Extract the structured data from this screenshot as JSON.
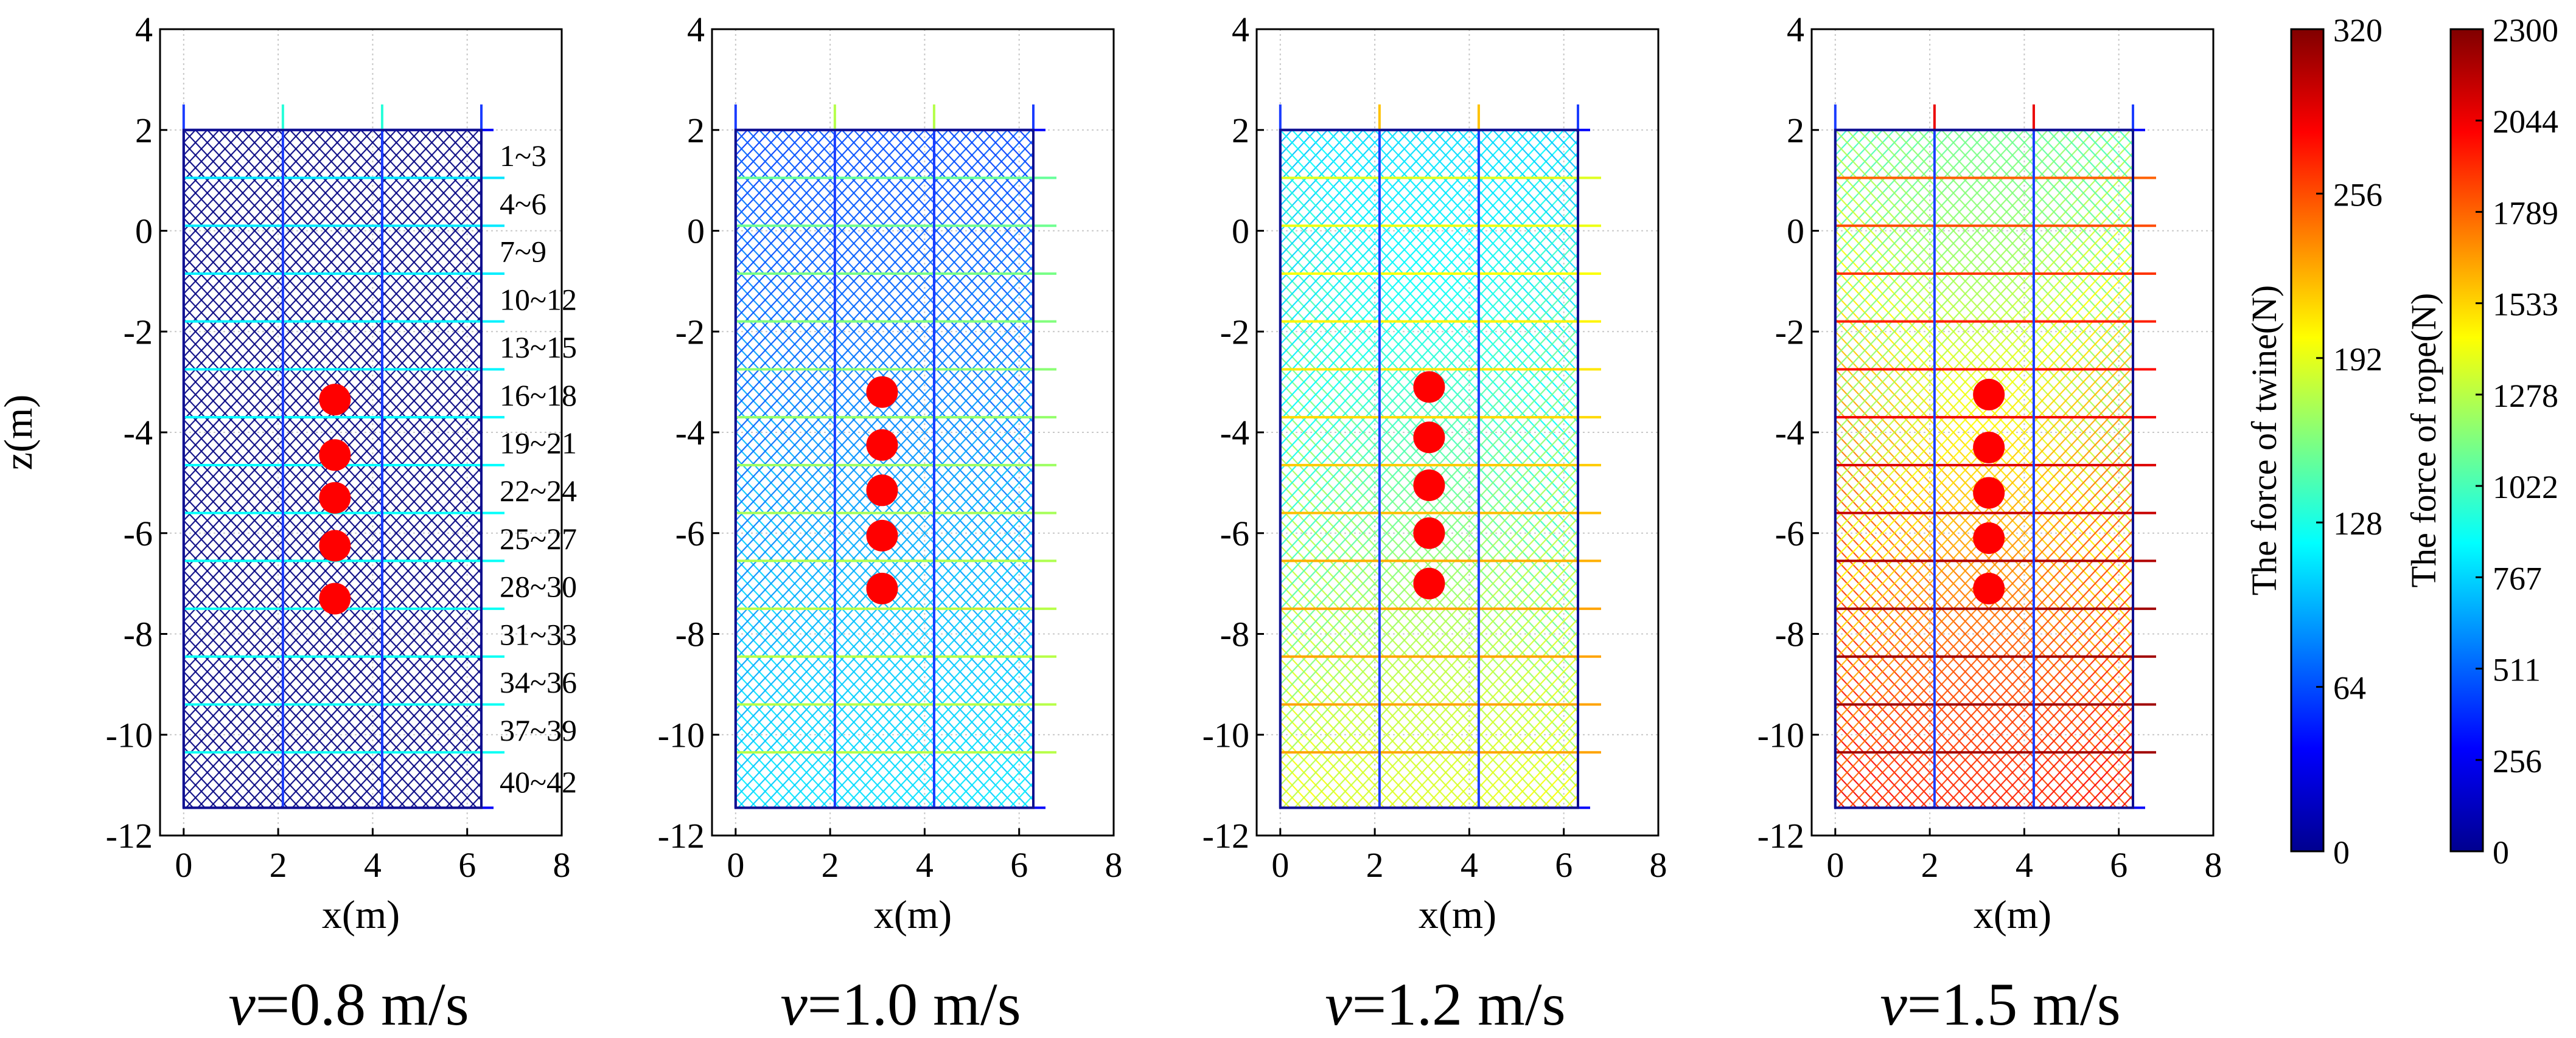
{
  "chart_data": {
    "type": "line",
    "title": "",
    "panels": [
      {
        "caption_var": "v",
        "caption_rest": "=0.8 m/s",
        "velocity": 0.8,
        "force_level_twine": 0.1,
        "force_level_rope": 0.16,
        "weights_z": [
          -3.35,
          -4.45,
          -5.3,
          -6.25,
          -7.3
        ],
        "weights_x": 3.2
      },
      {
        "caption_var": "v",
        "caption_rest": "=1.0 m/s",
        "velocity": 1.0,
        "force_level_twine": 0.32,
        "force_level_rope": 0.36,
        "weights_z": [
          -3.2,
          -4.25,
          -5.15,
          -6.05,
          -7.1
        ],
        "weights_x": 3.1
      },
      {
        "caption_var": "v",
        "caption_rest": "=1.2 m/s",
        "velocity": 1.2,
        "force_level_twine": 0.55,
        "force_level_rope": 0.55,
        "weights_z": [
          -3.1,
          -4.1,
          -5.05,
          -6.0,
          -7.0
        ],
        "weights_x": 3.15
      },
      {
        "caption_var": "v",
        "caption_rest": "=1.5 m/s",
        "velocity": 1.5,
        "force_level_twine": 0.78,
        "force_level_rope": 0.85,
        "weights_z": [
          -3.25,
          -4.3,
          -5.2,
          -6.1,
          -7.1
        ],
        "weights_x": 3.25
      }
    ],
    "xlabel": "x(m)",
    "ylabel": "z(m)",
    "xlim": [
      -0.5,
      8
    ],
    "ylim": [
      -12,
      4
    ],
    "xticks": [
      0,
      2,
      4,
      6,
      8
    ],
    "yticks": [
      4,
      2,
      0,
      -2,
      -4,
      -6,
      -8,
      -10,
      -12
    ],
    "grid": true,
    "net": {
      "x_left": 0.0,
      "x_right": 6.3,
      "z_top": 2.0,
      "z_bottom": -11.45,
      "vertical_ropes_x": [
        0.0,
        2.1,
        4.2,
        6.3
      ],
      "horizontal_ropes_z": [
        2.0,
        1.05,
        0.1,
        -0.85,
        -1.8,
        -2.75,
        -3.7,
        -4.65,
        -5.6,
        -6.55,
        -7.5,
        -8.45,
        -9.4,
        -10.35,
        -11.45
      ]
    },
    "row_labels": [
      "1~3",
      "4~6",
      "7~9",
      "10~12",
      "13~15",
      "16~18",
      "19~21",
      "22~24",
      "25~27",
      "28~30",
      "31~33",
      "34~36",
      "37~39",
      "40~42"
    ],
    "colorbars": [
      {
        "label": "The force of twine(N)",
        "min": 0,
        "max": 320,
        "ticks": [
          "320",
          "256",
          "192",
          "128",
          "64",
          "0"
        ]
      },
      {
        "label": "The force of rope(N)",
        "min": 0,
        "max": 2300,
        "ticks": [
          "2300",
          "2044",
          "1789",
          "1533",
          "1278",
          "1022",
          "767",
          "511",
          "256",
          "0"
        ]
      }
    ],
    "colormap": "jet"
  }
}
